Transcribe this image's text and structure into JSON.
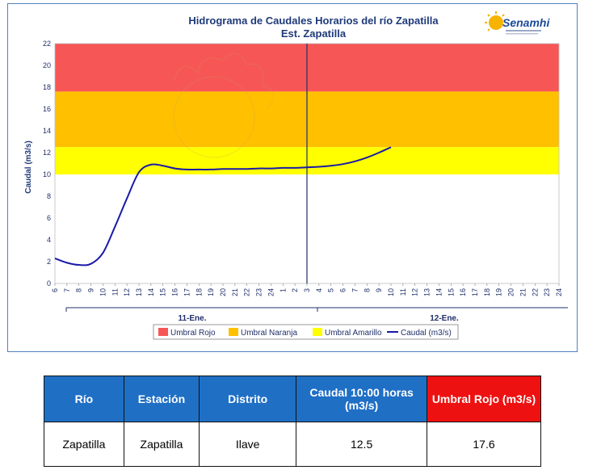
{
  "chart_data": {
    "type": "line",
    "title": "Hidrograma de Caudales Horarios del río Zapatilla",
    "subtitle": "Est. Zapatilla",
    "ylabel": "Caudal  (m3/s)",
    "ylim": [
      0,
      22
    ],
    "y_ticks": [
      0,
      2,
      4,
      6,
      8,
      10,
      12,
      14,
      16,
      18,
      20,
      22
    ],
    "x_ticks": [
      "6",
      "7",
      "8",
      "9",
      "10",
      "11",
      "12",
      "13",
      "14",
      "15",
      "16",
      "17",
      "18",
      "19",
      "20",
      "21",
      "22",
      "23",
      "24",
      "1",
      "2",
      "3",
      "4",
      "5",
      "6",
      "7",
      "8",
      "9",
      "10",
      "11",
      "12",
      "13",
      "14",
      "15",
      "16",
      "17",
      "18",
      "19",
      "20",
      "21",
      "22",
      "23",
      "24"
    ],
    "day_labels": [
      "11-Ene.",
      "12-Ene."
    ],
    "bands": [
      {
        "name": "Umbral Rojo",
        "from": 17.6,
        "to": 22,
        "color": "#f75656"
      },
      {
        "name": "Umbral Naranja",
        "from": 12.5,
        "to": 17.6,
        "color": "#ffc000"
      },
      {
        "name": "Umbral Amarillo",
        "from": 10,
        "to": 12.5,
        "color": "#ffff00"
      }
    ],
    "series": [
      {
        "name": "Caudal (m3/s)",
        "color": "#1a1aa8",
        "x": [
          0,
          1,
          2,
          3,
          4,
          5,
          6,
          7,
          8,
          9,
          10,
          11,
          12,
          13,
          14,
          15,
          16,
          17,
          18,
          19,
          20,
          21,
          22,
          23,
          24,
          25,
          26,
          27,
          28
        ],
        "values": [
          2.3,
          1.9,
          1.7,
          1.8,
          2.8,
          5.2,
          7.8,
          10.2,
          10.9,
          10.8,
          10.55,
          10.45,
          10.45,
          10.45,
          10.5,
          10.5,
          10.5,
          10.55,
          10.55,
          10.6,
          10.6,
          10.65,
          10.7,
          10.8,
          10.95,
          11.2,
          11.55,
          12.0,
          12.5
        ]
      }
    ],
    "marker_line_at_index": 21,
    "grid": false,
    "legend_position": "bottom"
  },
  "logo": {
    "text": "Senamhi"
  },
  "table": {
    "headers": [
      "Río",
      "Estación",
      "Distrito",
      "Caudal 10:00 horas (m3/s)",
      "Umbral Rojo (m3/s)"
    ],
    "row": [
      "Zapatilla",
      "Zapatilla",
      "Ilave",
      "12.5",
      "17.6"
    ]
  }
}
